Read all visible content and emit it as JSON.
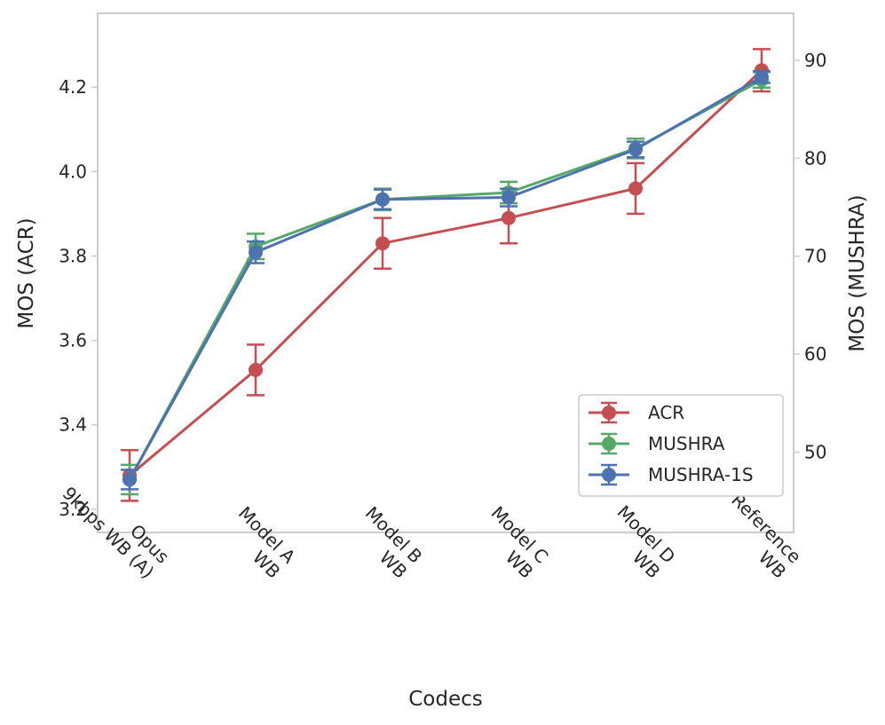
{
  "chart_data": {
    "type": "line",
    "xlabel": "Codecs",
    "ylabel_left": "MOS (ACR)",
    "ylabel_right": "MOS (MUSHRA)",
    "categories": [
      [
        "Opus",
        "9kbps WB (A)"
      ],
      [
        "Model A",
        "WB"
      ],
      [
        "Model B",
        "WB"
      ],
      [
        "Model C",
        "WB"
      ],
      [
        "Model D",
        "WB"
      ],
      [
        "Reference",
        "WB"
      ]
    ],
    "ylim_left": [
      3.145,
      4.375
    ],
    "yticks_left": [
      "3.2",
      "3.4",
      "3.6",
      "3.8",
      "4.0",
      "4.2"
    ],
    "ylim_right": [
      41.8,
      94.8
    ],
    "yticks_right": [
      "50",
      "60",
      "70",
      "80",
      "90"
    ],
    "grid": false,
    "legend_position": "lower-right",
    "series": [
      {
        "name": "ACR",
        "axis": "left",
        "color": "#c44e52",
        "values": [
          3.28,
          3.53,
          3.83,
          3.89,
          3.96,
          4.24
        ],
        "errors": [
          0.06,
          0.06,
          0.06,
          0.06,
          0.06,
          0.05
        ]
      },
      {
        "name": "MUSHRA",
        "axis": "right",
        "color": "#55a868",
        "values": [
          47.2,
          71.0,
          75.8,
          76.5,
          81.0,
          88.0
        ],
        "errors": [
          1.5,
          1.3,
          1.1,
          1.1,
          1.0,
          0.8
        ]
      },
      {
        "name": "MUSHRA-1S",
        "axis": "right",
        "color": "#4c72b0",
        "values": [
          47.2,
          70.4,
          75.8,
          76.0,
          80.9,
          88.3
        ],
        "errors": [
          1.0,
          1.1,
          1.0,
          0.9,
          0.8,
          0.6
        ]
      }
    ]
  }
}
